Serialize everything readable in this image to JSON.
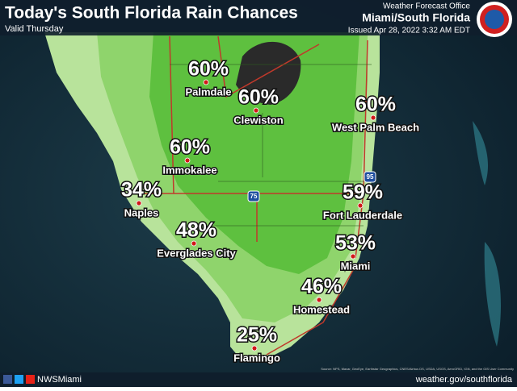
{
  "header": {
    "title": "Today's South Florida Rain Chances",
    "subtitle": "Valid Thursday",
    "office_line1": "Weather Forecast Office",
    "office_line2": "Miami/South Florida",
    "issued": "Issued Apr 28, 2022 3:32 AM EDT"
  },
  "cities": [
    {
      "name": "Palmdale",
      "value": 60,
      "value_label": "60%"
    },
    {
      "name": "Clewiston",
      "value": 60,
      "value_label": "60%"
    },
    {
      "name": "West Palm Beach",
      "value": 60,
      "value_label": "60%"
    },
    {
      "name": "Immokalee",
      "value": 60,
      "value_label": "60%"
    },
    {
      "name": "Naples",
      "value": 34,
      "value_label": "34%"
    },
    {
      "name": "Fort Lauderdale",
      "value": 59,
      "value_label": "59%"
    },
    {
      "name": "Everglades City",
      "value": 48,
      "value_label": "48%"
    },
    {
      "name": "Miami",
      "value": 53,
      "value_label": "53%"
    },
    {
      "name": "Homestead",
      "value": 46,
      "value_label": "46%"
    },
    {
      "name": "Flamingo",
      "value": 25,
      "value_label": "25%"
    }
  ],
  "shields": [
    "75",
    "95"
  ],
  "attribution": "Source: NPS, Maxar, GeoEye, Earthstar Geographics, CNES/Airbus DS, USDA, USGS, AeroGRID, IGN, and the GIS User Community",
  "footer": {
    "handle": "NWSMiami",
    "url": "weather.gov/southflorida"
  }
}
